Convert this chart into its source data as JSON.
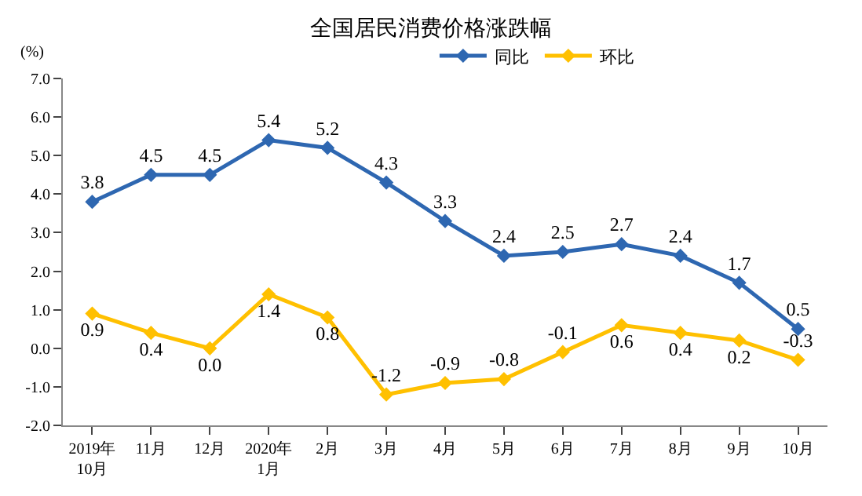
{
  "chart_data": {
    "type": "line",
    "title": "全国居民消费价格涨跌幅",
    "ylabel": "(%)",
    "categories": [
      "2019年\n10月",
      "11月",
      "12月",
      "2020年\n1月",
      "2月",
      "3月",
      "4月",
      "5月",
      "6月",
      "7月",
      "8月",
      "9月",
      "10月"
    ],
    "series": [
      {
        "name": "同比",
        "color": "#2e67b1",
        "values": [
          3.8,
          4.5,
          4.5,
          5.4,
          5.2,
          4.3,
          3.3,
          2.4,
          2.5,
          2.7,
          2.4,
          1.7,
          0.5
        ],
        "value_labels": [
          "3.8",
          "4.5",
          "4.5",
          "5.4",
          "5.2",
          "4.3",
          "3.3",
          "2.4",
          "2.5",
          "2.7",
          "2.4",
          "1.7",
          "0.5"
        ]
      },
      {
        "name": "环比",
        "color": "#ffc000",
        "values": [
          0.9,
          0.4,
          0.0,
          1.4,
          0.8,
          -1.2,
          -0.9,
          -0.8,
          -0.1,
          0.6,
          0.4,
          0.2,
          -0.3
        ],
        "value_labels": [
          "0.9",
          "0.4",
          "0.0",
          "1.4",
          "0.8",
          "-1.2",
          "-0.9",
          "-0.8",
          "-0.1",
          "0.6",
          "0.4",
          "0.2",
          "-0.3"
        ]
      }
    ],
    "ylim": [
      -2,
      7
    ],
    "yticks": [
      {
        "value": -2,
        "label": "-2.0"
      },
      {
        "value": -1,
        "label": "-1.0"
      },
      {
        "value": 0,
        "label": "0.0"
      },
      {
        "value": 1,
        "label": "1.0"
      },
      {
        "value": 2,
        "label": "2.0"
      },
      {
        "value": 3,
        "label": "3.0"
      },
      {
        "value": 4,
        "label": "4.0"
      },
      {
        "value": 5,
        "label": "5.0"
      },
      {
        "value": 6,
        "label": "6.0"
      },
      {
        "value": 7,
        "label": "7.0"
      }
    ],
    "legend": "top",
    "marker": "diamond",
    "line_style": "solid"
  }
}
